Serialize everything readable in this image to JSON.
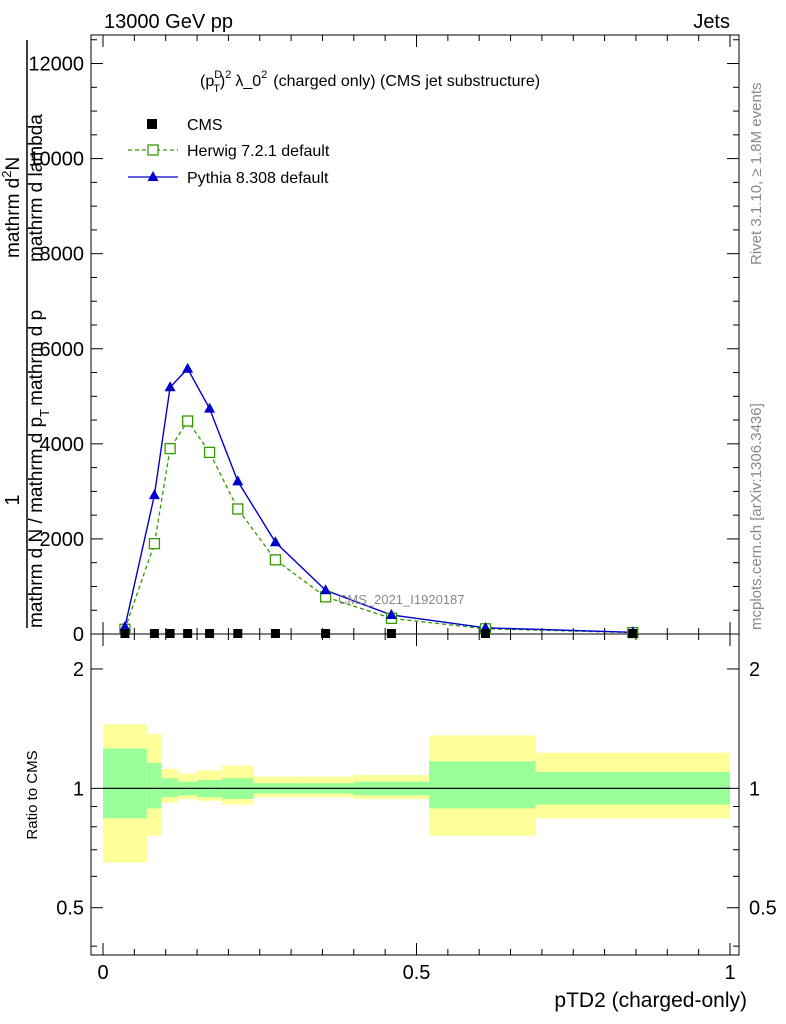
{
  "header": {
    "left": "13000 GeV pp",
    "right": "Jets"
  },
  "title": {
    "main": "λ_0",
    "exp": "2",
    "suffix": "(charged only) (CMS jet substructure)",
    "pt_base": "(p",
    "pt_sup": "D",
    "pt_sub": "T",
    "pt_close": ")",
    "pt_exp": "2"
  },
  "side_labels": {
    "rivet": "Rivet 3.1.10, ≥ 1.8M events",
    "mcplots": "mcplots.cern.ch [arXiv:1306.3436]"
  },
  "watermark": "CMS_2021_I1920187",
  "main_ylabel": {
    "one": "1",
    "denominator": "mathrm d N / mathrm d p",
    "denominator_sub": "T",
    "denominator_tail": "mathrm d p",
    "numerator": "mathrm d",
    "numerator_sup": "2",
    "numerator_n": "N",
    "numerator_tail": "mathrm d lambda"
  },
  "ratio_ylabel": "Ratio to CMS",
  "xlabel": "pTD2 (charged-only)",
  "colors": {
    "cms": "#000000",
    "herwig": "#339900",
    "pythia": "#0000cc",
    "band_inner": "#99ff99",
    "band_outer": "#ffff99"
  },
  "chart_data": {
    "type": "line",
    "xlim": [
      0,
      1
    ],
    "ylim": [
      0,
      12600
    ],
    "x_ticks": [
      "0",
      "0.5",
      "1"
    ],
    "y_ticks": [
      "0",
      "2000",
      "4000",
      "6000",
      "8000",
      "10000",
      "12000"
    ],
    "legend_position": "top-left",
    "series": [
      {
        "name": "CMS",
        "marker": "square",
        "x": [
          0.035,
          0.082,
          0.107,
          0.135,
          0.17,
          0.215,
          0.275,
          0.355,
          0.46,
          0.61,
          0.845
        ],
        "y": [
          0,
          0,
          0,
          0,
          0,
          0,
          0,
          0,
          0,
          0,
          0
        ]
      },
      {
        "name": "Herwig 7.2.1 default",
        "marker": "open-square",
        "x": [
          0.035,
          0.082,
          0.107,
          0.135,
          0.17,
          0.215,
          0.275,
          0.355,
          0.46,
          0.61,
          0.845
        ],
        "y": [
          100,
          1900,
          3900,
          4480,
          3820,
          2630,
          1560,
          780,
          330,
          110,
          30
        ]
      },
      {
        "name": "Pythia 8.308 default",
        "marker": "triangle",
        "x": [
          0.035,
          0.082,
          0.107,
          0.135,
          0.17,
          0.215,
          0.275,
          0.355,
          0.46,
          0.61,
          0.845
        ],
        "y": [
          150,
          2920,
          5190,
          5580,
          4740,
          3210,
          1930,
          920,
          400,
          130,
          35
        ]
      }
    ],
    "ratio": {
      "ylabel": "Ratio to CMS",
      "yscale": "log",
      "ylim": [
        0.38,
        2.45
      ],
      "y_ticks": [
        "0.5",
        "1",
        "2"
      ],
      "bins": [
        {
          "lo": 0.0,
          "hi": 0.07,
          "inner": [
            0.84,
            1.26
          ],
          "outer": [
            0.65,
            1.45
          ]
        },
        {
          "lo": 0.07,
          "hi": 0.093,
          "inner": [
            0.89,
            1.16
          ],
          "outer": [
            0.76,
            1.37
          ]
        },
        {
          "lo": 0.093,
          "hi": 0.12,
          "inner": [
            0.95,
            1.06
          ],
          "outer": [
            0.92,
            1.12
          ]
        },
        {
          "lo": 0.12,
          "hi": 0.15,
          "inner": [
            0.96,
            1.04
          ],
          "outer": [
            0.94,
            1.09
          ]
        },
        {
          "lo": 0.15,
          "hi": 0.19,
          "inner": [
            0.95,
            1.05
          ],
          "outer": [
            0.93,
            1.11
          ]
        },
        {
          "lo": 0.19,
          "hi": 0.24,
          "inner": [
            0.94,
            1.06
          ],
          "outer": [
            0.91,
            1.14
          ]
        },
        {
          "lo": 0.24,
          "hi": 0.31,
          "inner": [
            0.97,
            1.03
          ],
          "outer": [
            0.95,
            1.07
          ]
        },
        {
          "lo": 0.31,
          "hi": 0.4,
          "inner": [
            0.97,
            1.03
          ],
          "outer": [
            0.95,
            1.07
          ]
        },
        {
          "lo": 0.4,
          "hi": 0.52,
          "inner": [
            0.96,
            1.04
          ],
          "outer": [
            0.94,
            1.08
          ]
        },
        {
          "lo": 0.52,
          "hi": 0.69,
          "inner": [
            0.89,
            1.17
          ],
          "outer": [
            0.76,
            1.36
          ]
        },
        {
          "lo": 0.69,
          "hi": 1.0,
          "inner": [
            0.91,
            1.1
          ],
          "outer": [
            0.84,
            1.23
          ]
        }
      ]
    }
  }
}
